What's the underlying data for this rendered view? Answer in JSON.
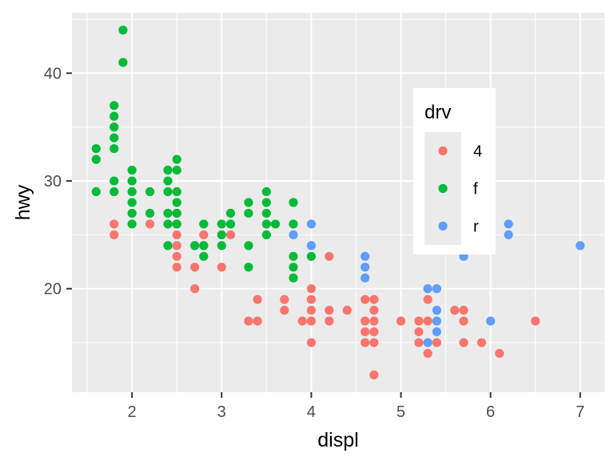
{
  "chart_data": {
    "type": "scatter",
    "xlabel": "displ",
    "ylabel": "hwy",
    "xlim": [
      1.33,
      7.27
    ],
    "ylim": [
      10.4,
      45.6
    ],
    "x_major_ticks": [
      2,
      3,
      4,
      5,
      6,
      7
    ],
    "x_tick_labels": [
      "2",
      "3",
      "4",
      "5",
      "6",
      "7"
    ],
    "x_minor_ticks": [
      1.5,
      2.5,
      3.5,
      4.5,
      5.5,
      6.5
    ],
    "y_major_ticks": [
      20,
      30,
      40
    ],
    "y_tick_labels": [
      "20",
      "30",
      "40"
    ],
    "y_minor_ticks": [
      15,
      25,
      35,
      45
    ],
    "grid": true,
    "legend": {
      "title": "drv",
      "placement": "top-right",
      "entries": [
        "4",
        "f",
        "r"
      ]
    },
    "colors": {
      "4": "#F8766D",
      "f": "#00BA38",
      "r": "#619CFF",
      "panel_background": "#EBEBEB",
      "grid": "#FFFFFF",
      "axis_text": "#4D4D4D",
      "axis_title": "#000000"
    },
    "series": [
      {
        "name": "4",
        "points": [
          [
            1.8,
            26
          ],
          [
            1.8,
            25
          ],
          [
            2.2,
            26
          ],
          [
            2.5,
            27
          ],
          [
            2.5,
            26
          ],
          [
            2.5,
            25
          ],
          [
            2.5,
            24
          ],
          [
            2.5,
            23
          ],
          [
            2.5,
            22
          ],
          [
            2.7,
            22
          ],
          [
            2.7,
            20
          ],
          [
            2.8,
            25
          ],
          [
            2.8,
            24
          ],
          [
            3.0,
            22
          ],
          [
            3.1,
            25
          ],
          [
            3.3,
            17
          ],
          [
            3.4,
            17
          ],
          [
            3.4,
            19
          ],
          [
            3.7,
            19
          ],
          [
            3.7,
            18
          ],
          [
            3.9,
            17
          ],
          [
            4.0,
            20
          ],
          [
            4.0,
            19
          ],
          [
            4.0,
            18
          ],
          [
            4.0,
            17
          ],
          [
            4.0,
            15
          ],
          [
            4.2,
            23
          ],
          [
            4.2,
            18
          ],
          [
            4.2,
            17
          ],
          [
            4.4,
            18
          ],
          [
            4.6,
            19
          ],
          [
            4.6,
            17
          ],
          [
            4.6,
            16
          ],
          [
            4.6,
            15
          ],
          [
            4.7,
            19
          ],
          [
            4.7,
            18
          ],
          [
            4.7,
            17
          ],
          [
            4.7,
            16
          ],
          [
            4.7,
            15
          ],
          [
            4.7,
            12
          ],
          [
            5.0,
            17
          ],
          [
            5.2,
            17
          ],
          [
            5.2,
            16
          ],
          [
            5.2,
            15
          ],
          [
            5.3,
            19
          ],
          [
            5.3,
            17
          ],
          [
            5.3,
            14
          ],
          [
            5.4,
            15
          ],
          [
            5.6,
            18
          ],
          [
            5.7,
            18
          ],
          [
            5.7,
            17
          ],
          [
            5.7,
            15
          ],
          [
            5.9,
            15
          ],
          [
            6.1,
            14
          ],
          [
            6.5,
            17
          ]
        ]
      },
      {
        "name": "f",
        "points": [
          [
            1.6,
            33
          ],
          [
            1.6,
            32
          ],
          [
            1.6,
            29
          ],
          [
            1.8,
            37
          ],
          [
            1.8,
            36
          ],
          [
            1.8,
            35
          ],
          [
            1.8,
            34
          ],
          [
            1.8,
            33
          ],
          [
            1.8,
            30
          ],
          [
            1.8,
            29
          ],
          [
            1.9,
            44
          ],
          [
            1.9,
            41
          ],
          [
            2.0,
            31
          ],
          [
            2.0,
            30
          ],
          [
            2.0,
            29
          ],
          [
            2.0,
            28
          ],
          [
            2.0,
            27
          ],
          [
            2.0,
            26
          ],
          [
            2.2,
            29
          ],
          [
            2.2,
            27
          ],
          [
            2.4,
            31
          ],
          [
            2.4,
            30
          ],
          [
            2.4,
            29
          ],
          [
            2.4,
            27
          ],
          [
            2.4,
            26
          ],
          [
            2.4,
            24
          ],
          [
            2.5,
            32
          ],
          [
            2.5,
            31
          ],
          [
            2.5,
            29
          ],
          [
            2.5,
            28
          ],
          [
            2.5,
            27
          ],
          [
            2.5,
            26
          ],
          [
            2.7,
            24
          ],
          [
            2.8,
            26
          ],
          [
            2.8,
            24
          ],
          [
            2.8,
            23
          ],
          [
            3.0,
            26
          ],
          [
            3.0,
            25
          ],
          [
            3.0,
            24
          ],
          [
            3.1,
            27
          ],
          [
            3.1,
            26
          ],
          [
            3.3,
            28
          ],
          [
            3.3,
            27
          ],
          [
            3.3,
            24
          ],
          [
            3.3,
            22
          ],
          [
            3.5,
            29
          ],
          [
            3.5,
            28
          ],
          [
            3.5,
            27
          ],
          [
            3.5,
            26
          ],
          [
            3.5,
            25
          ],
          [
            3.6,
            26
          ],
          [
            3.8,
            28
          ],
          [
            3.8,
            26
          ],
          [
            3.8,
            23
          ],
          [
            3.8,
            22
          ],
          [
            3.8,
            21
          ],
          [
            4.0,
            23
          ]
        ]
      },
      {
        "name": "r",
        "points": [
          [
            3.8,
            25
          ],
          [
            4.0,
            26
          ],
          [
            4.0,
            24
          ],
          [
            4.6,
            23
          ],
          [
            4.6,
            22
          ],
          [
            4.6,
            21
          ],
          [
            5.3,
            20
          ],
          [
            5.3,
            15
          ],
          [
            5.4,
            20
          ],
          [
            5.4,
            18
          ],
          [
            5.4,
            17
          ],
          [
            5.4,
            16
          ],
          [
            5.7,
            23
          ],
          [
            6.0,
            17
          ],
          [
            6.2,
            26
          ],
          [
            6.2,
            25
          ],
          [
            7.0,
            24
          ]
        ]
      }
    ]
  }
}
